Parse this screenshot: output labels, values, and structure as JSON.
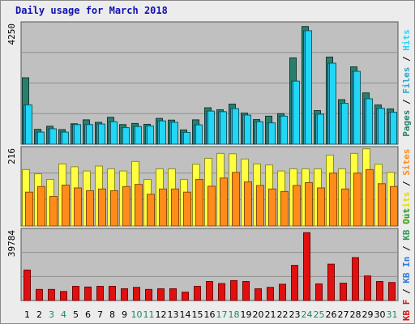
{
  "title": "Daily usage for March 2018",
  "colors": {
    "pages": "#2a7f6c",
    "files": "#2aa7c7",
    "hits": "#22d6f5",
    "visits": "#ffff40",
    "sites": "#ff8c1a",
    "kbin": "#2e7bd6",
    "kbout": "#2a9a56",
    "kbf": "#e01010",
    "weekend": "#1a8a5a",
    "weekday": "#000000",
    "panel": "#c0c0c0"
  },
  "legends": {
    "top": [
      {
        "text": "Pages",
        "color": "#2a7f6c"
      },
      {
        "text": " / ",
        "color": "#000000"
      },
      {
        "text": "Files",
        "color": "#2aa7c7"
      },
      {
        "text": " / ",
        "color": "#000000"
      },
      {
        "text": "Hits",
        "color": "#22d6f5"
      }
    ],
    "middle": [
      {
        "text": "Visits",
        "color": "#e0e000"
      },
      {
        "text": " / ",
        "color": "#000000"
      },
      {
        "text": "Sites",
        "color": "#ff8c1a"
      }
    ],
    "bottom": [
      {
        "text": "KB F",
        "color": "#e01010"
      },
      {
        "text": " / ",
        "color": "#000000"
      },
      {
        "text": "KB In",
        "color": "#2e7bd6"
      },
      {
        "text": " / ",
        "color": "#000000"
      },
      {
        "text": "KB Out",
        "color": "#2a9a56"
      }
    ]
  },
  "chart_data": [
    {
      "type": "bar",
      "title": "Daily usage for March 2018",
      "ymax_label": "4250",
      "ylim": [
        0,
        4250
      ],
      "categories": [
        "1",
        "2",
        "3",
        "4",
        "5",
        "6",
        "7",
        "8",
        "9",
        "10",
        "11",
        "12",
        "13",
        "14",
        "15",
        "16",
        "17",
        "18",
        "19",
        "20",
        "21",
        "22",
        "23",
        "24",
        "25",
        "26",
        "27",
        "28",
        "29",
        "30",
        "31"
      ],
      "weekend_days": [
        3,
        4,
        10,
        11,
        17,
        18,
        24,
        25,
        31
      ],
      "series": [
        {
          "name": "Pages",
          "values": [
            2370,
            530,
            640,
            520,
            730,
            870,
            780,
            960,
            700,
            740,
            710,
            920,
            860,
            510,
            870,
            1300,
            1230,
            1430,
            1110,
            880,
            1000,
            1090,
            3080,
            4200,
            1200,
            3110,
            1590,
            2760,
            1830,
            1400,
            1260
          ]
        },
        {
          "name": "Files",
          "values": [
            1400,
            430,
            550,
            430,
            700,
            700,
            720,
            800,
            590,
            630,
            650,
            830,
            780,
            420,
            690,
            1180,
            1160,
            1270,
            1040,
            800,
            760,
            1000,
            2250,
            4050,
            1070,
            2890,
            1460,
            2600,
            1620,
            1280,
            1140
          ]
        },
        {
          "name": "Hits",
          "values": [
            1400,
            430,
            550,
            430,
            700,
            700,
            720,
            800,
            590,
            630,
            650,
            830,
            780,
            420,
            690,
            1180,
            1160,
            1270,
            1040,
            800,
            760,
            1000,
            2250,
            4050,
            1070,
            2890,
            1460,
            2600,
            1620,
            1280,
            1140
          ]
        }
      ]
    },
    {
      "type": "bar",
      "ymax_label": "216",
      "ylim": [
        0,
        216
      ],
      "categories": [
        "1",
        "2",
        "3",
        "4",
        "5",
        "6",
        "7",
        "8",
        "9",
        "10",
        "11",
        "12",
        "13",
        "14",
        "15",
        "16",
        "17",
        "18",
        "19",
        "20",
        "21",
        "22",
        "23",
        "24",
        "25",
        "26",
        "27",
        "28",
        "29",
        "30",
        "31"
      ],
      "series": [
        {
          "name": "Visits",
          "values": [
            160,
            148,
            132,
            176,
            168,
            156,
            170,
            162,
            156,
            183,
            132,
            162,
            162,
            132,
            175,
            192,
            206,
            205,
            190,
            176,
            173,
            156,
            162,
            162,
            162,
            201,
            162,
            206,
            219,
            175,
            152
          ]
        },
        {
          "name": "Sites",
          "values": [
            96,
            112,
            84,
            116,
            108,
            100,
            105,
            100,
            112,
            118,
            90,
            105,
            105,
            96,
            132,
            113,
            136,
            152,
            125,
            115,
            105,
            98,
            115,
            123,
            108,
            150,
            105,
            150,
            160,
            120,
            112
          ]
        }
      ]
    },
    {
      "type": "bar",
      "ymax_label": "39784",
      "ylim": [
        0,
        39784
      ],
      "categories": [
        "1",
        "2",
        "3",
        "4",
        "5",
        "6",
        "7",
        "8",
        "9",
        "10",
        "11",
        "12",
        "13",
        "14",
        "15",
        "16",
        "17",
        "18",
        "19",
        "20",
        "21",
        "22",
        "23",
        "24",
        "25",
        "26",
        "27",
        "28",
        "29",
        "30",
        "31"
      ],
      "series": [
        {
          "name": "KB F",
          "values": [
            17600,
            6400,
            6400,
            5200,
            8200,
            7800,
            8200,
            8200,
            6800,
            7600,
            6400,
            6800,
            6800,
            4800,
            8200,
            11000,
            9800,
            11500,
            11000,
            6800,
            7600,
            9400,
            20300,
            39200,
            9600,
            21000,
            10000,
            24800,
            14200,
            11000,
            10400
          ]
        }
      ]
    }
  ]
}
